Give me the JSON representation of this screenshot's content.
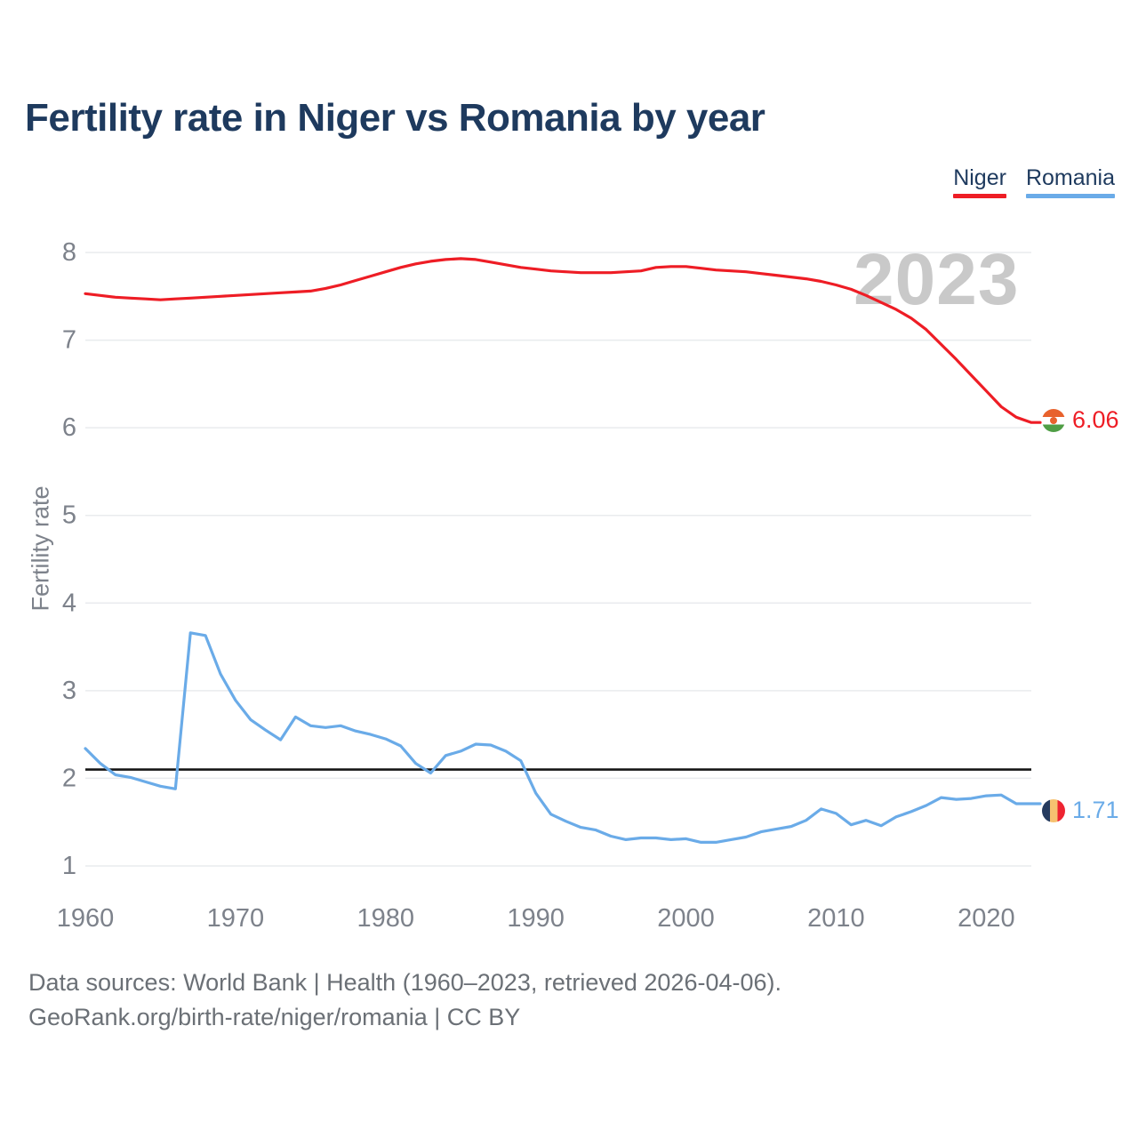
{
  "page": {
    "title": "Fertility rate in Niger vs Romania by year",
    "background": "#ffffff"
  },
  "legend": {
    "items": [
      {
        "label": "Niger",
        "color": "#ee1d25"
      },
      {
        "label": "Romania",
        "color": "#6aabe8"
      }
    ]
  },
  "chart_data": {
    "type": "line",
    "title": "Fertility rate in Niger vs Romania by year",
    "xlabel": "",
    "ylabel": "Fertility rate",
    "ylim": [
      1,
      8
    ],
    "xlim": [
      1960,
      2023
    ],
    "yticks": [
      1,
      2,
      3,
      4,
      5,
      6,
      7,
      8
    ],
    "xticks": [
      1960,
      1970,
      1980,
      1990,
      2000,
      2010,
      2020
    ],
    "grid": "horizontal",
    "legend_position": "top-right",
    "watermark": "2023",
    "replacement_line": {
      "value": 2.1,
      "color": "#151515"
    },
    "x": [
      1960,
      1961,
      1962,
      1963,
      1964,
      1965,
      1966,
      1967,
      1968,
      1969,
      1970,
      1971,
      1972,
      1973,
      1974,
      1975,
      1976,
      1977,
      1978,
      1979,
      1980,
      1981,
      1982,
      1983,
      1984,
      1985,
      1986,
      1987,
      1988,
      1989,
      1990,
      1991,
      1992,
      1993,
      1994,
      1995,
      1996,
      1997,
      1998,
      1999,
      2000,
      2001,
      2002,
      2003,
      2004,
      2005,
      2006,
      2007,
      2008,
      2009,
      2010,
      2011,
      2012,
      2013,
      2014,
      2015,
      2016,
      2017,
      2018,
      2019,
      2020,
      2021,
      2022,
      2023
    ],
    "series": [
      {
        "name": "Niger",
        "color": "#ee1d25",
        "end_label": "6.06",
        "values": [
          7.53,
          7.51,
          7.49,
          7.48,
          7.47,
          7.46,
          7.47,
          7.48,
          7.49,
          7.5,
          7.51,
          7.52,
          7.53,
          7.54,
          7.55,
          7.56,
          7.59,
          7.63,
          7.68,
          7.73,
          7.78,
          7.83,
          7.87,
          7.9,
          7.92,
          7.93,
          7.92,
          7.89,
          7.86,
          7.83,
          7.81,
          7.79,
          7.78,
          7.77,
          7.77,
          7.77,
          7.78,
          7.79,
          7.83,
          7.84,
          7.84,
          7.82,
          7.8,
          7.79,
          7.78,
          7.76,
          7.74,
          7.72,
          7.7,
          7.67,
          7.63,
          7.58,
          7.51,
          7.43,
          7.35,
          7.25,
          7.12,
          6.95,
          6.78,
          6.6,
          6.42,
          6.24,
          6.12,
          6.06
        ]
      },
      {
        "name": "Romania",
        "color": "#6aabe8",
        "end_label": "1.71",
        "values": [
          2.34,
          2.17,
          2.04,
          2.01,
          1.96,
          1.91,
          1.88,
          3.66,
          3.63,
          3.19,
          2.89,
          2.67,
          2.55,
          2.44,
          2.7,
          2.6,
          2.58,
          2.6,
          2.54,
          2.5,
          2.45,
          2.37,
          2.17,
          2.06,
          2.26,
          2.31,
          2.39,
          2.38,
          2.31,
          2.2,
          1.83,
          1.59,
          1.51,
          1.44,
          1.41,
          1.34,
          1.3,
          1.32,
          1.32,
          1.3,
          1.31,
          1.27,
          1.27,
          1.3,
          1.33,
          1.39,
          1.42,
          1.45,
          1.52,
          1.65,
          1.6,
          1.47,
          1.52,
          1.46,
          1.56,
          1.62,
          1.69,
          1.78,
          1.76,
          1.77,
          1.8,
          1.81,
          1.71,
          1.71
        ]
      }
    ]
  },
  "flags": {
    "niger": {
      "orientation": "horizontal",
      "bands": [
        "#e8622d",
        "#ffffff",
        "#4f9e45"
      ],
      "dot": "#e8622d"
    },
    "romania": {
      "orientation": "vertical",
      "bands": [
        "#243a5e",
        "#f6c170",
        "#ee2431"
      ]
    }
  },
  "axis_style": {
    "tick_color": "#7d828b",
    "grid_color": "#e9ebee"
  },
  "footer": {
    "line1": "Data sources: World Bank | Health (1960–2023, retrieved 2026-04-06).",
    "line2": "GeoRank.org/birth-rate/niger/romania | CC BY"
  }
}
